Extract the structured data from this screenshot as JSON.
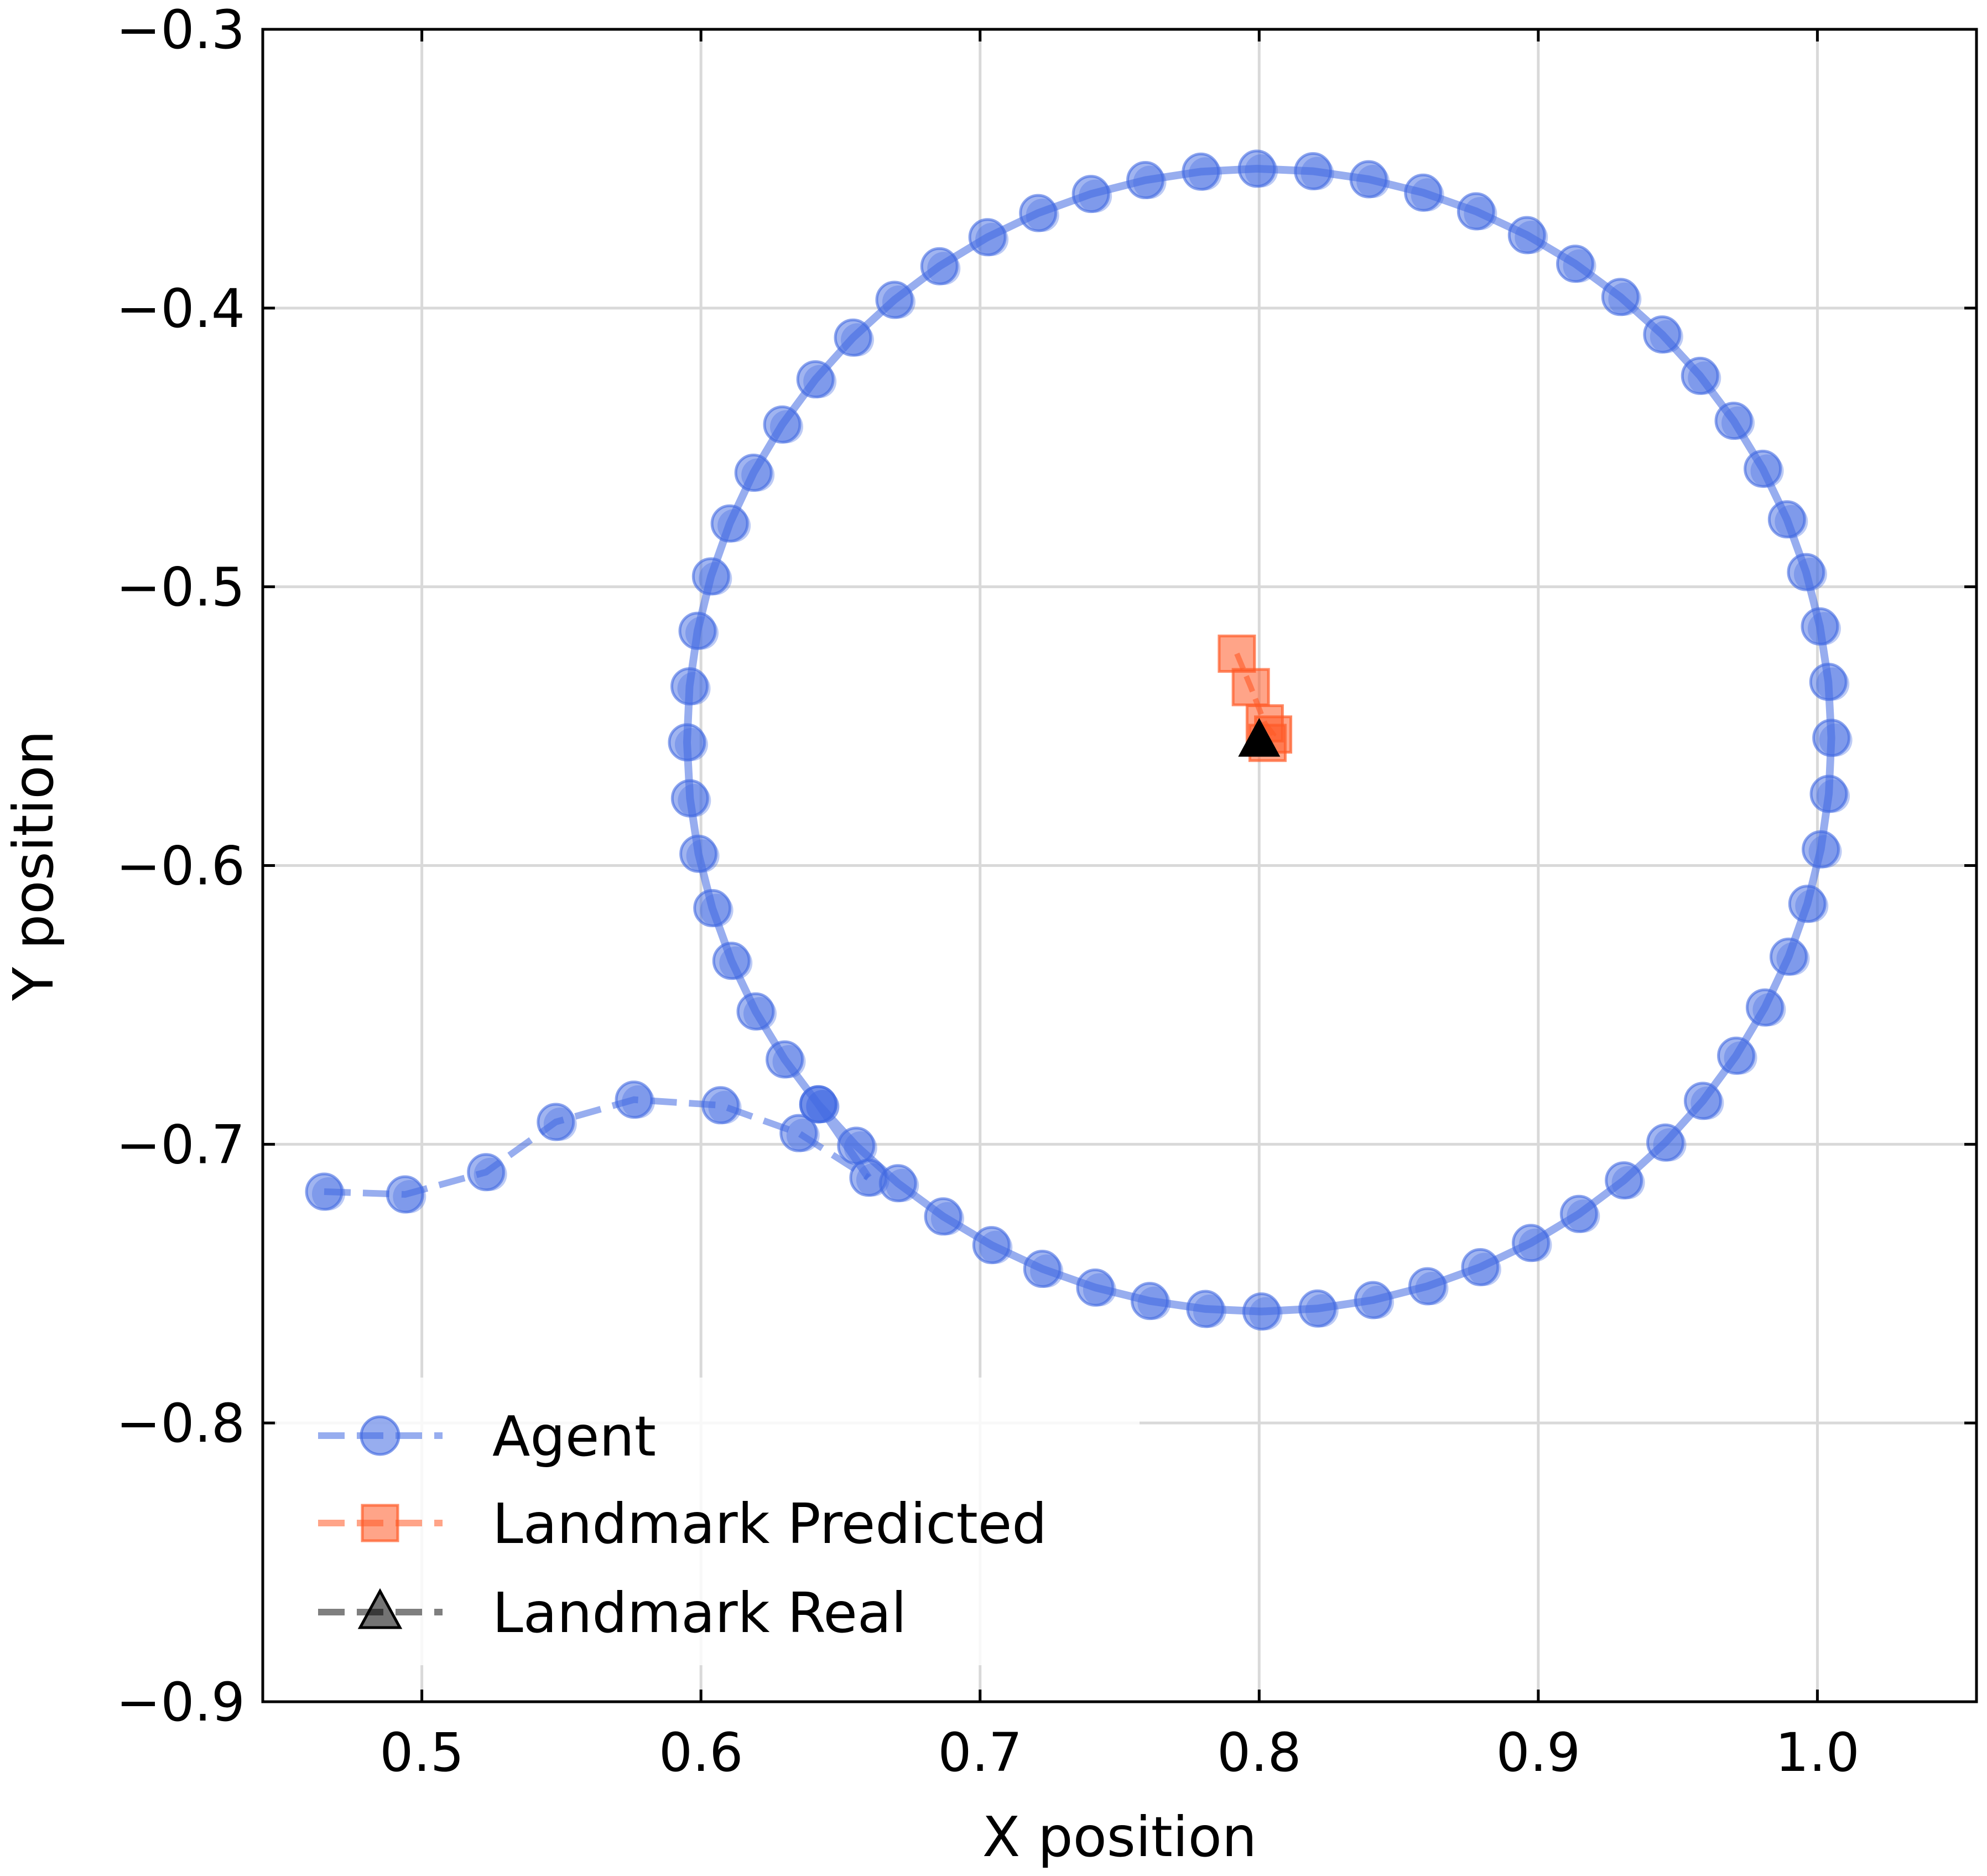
{
  "chart_data": {
    "type": "scatter",
    "title": "",
    "xlabel": "X position",
    "ylabel": "Y position",
    "xlim": [
      0.443,
      1.057
    ],
    "ylim": [
      -0.9,
      -0.3
    ],
    "grid": true,
    "legend_position": "lower-left",
    "x_tick_labels": [
      "0.5",
      "0.6",
      "0.7",
      "0.8",
      "0.9",
      "1.0"
    ],
    "y_tick_labels": [
      "−0.3",
      "−0.4",
      "−0.5",
      "−0.6",
      "−0.7",
      "−0.8",
      "−0.9"
    ],
    "x_ticks": [
      0.5,
      0.6,
      0.7,
      0.8,
      0.9,
      1.0
    ],
    "y_ticks": [
      -0.3,
      -0.4,
      -0.5,
      -0.6,
      -0.7,
      -0.8,
      -0.9
    ],
    "series": [
      {
        "name": "Agent",
        "color": "#4169E1",
        "marker": "circle",
        "line_style": "dashed",
        "approach_path": [
          [
            0.465,
            -0.717
          ],
          [
            0.494,
            -0.718
          ],
          [
            0.523,
            -0.71
          ],
          [
            0.548,
            -0.692
          ],
          [
            0.576,
            -0.684
          ],
          [
            0.607,
            -0.686
          ],
          [
            0.635,
            -0.696
          ],
          [
            0.66,
            -0.712
          ]
        ],
        "orbit": {
          "center": [
            0.8,
            -0.555
          ],
          "radius_x": 0.205,
          "radius_y": 0.205,
          "points": 64
        }
      },
      {
        "name": "Landmark Predicted",
        "color": "#FF5A26",
        "marker": "square",
        "line_style": "dashed",
        "points": [
          [
            0.792,
            -0.524
          ],
          [
            0.797,
            -0.536
          ],
          [
            0.802,
            -0.549
          ],
          [
            0.805,
            -0.553
          ],
          [
            0.803,
            -0.556
          ]
        ]
      },
      {
        "name": "Landmark Real",
        "color": "#000000",
        "marker": "triangle",
        "line_style": "dashed",
        "points": [
          [
            0.8,
            -0.555
          ]
        ]
      }
    ]
  }
}
